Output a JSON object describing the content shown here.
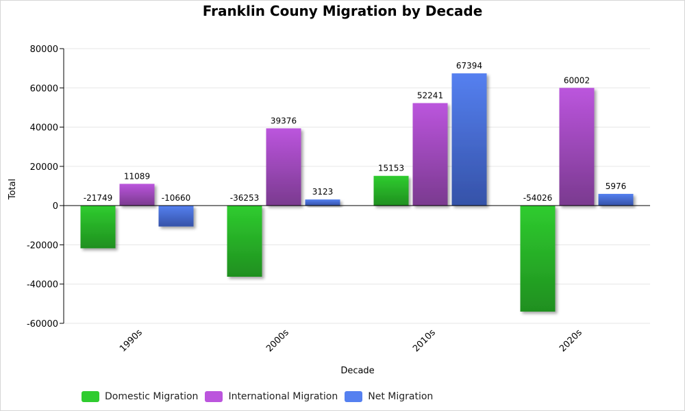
{
  "chart_data": {
    "type": "bar",
    "title": "Franklin Couny Migration by Decade",
    "xlabel": "Decade",
    "ylabel": "Total",
    "categories": [
      "1990s",
      "2000s",
      "2010s",
      "2020s"
    ],
    "series": [
      {
        "name": "Domestic Migration",
        "color": "#2fcc2f",
        "color_dark": "#1f8f1f",
        "values": [
          -21749,
          -36253,
          15153,
          -54026
        ]
      },
      {
        "name": "International Migration",
        "color": "#bb55dd",
        "color_dark": "#7a3a8f",
        "values": [
          11089,
          39376,
          52241,
          60002
        ]
      },
      {
        "name": "Net Migration",
        "color": "#5580f0",
        "color_dark": "#3552a8",
        "values": [
          -10660,
          3123,
          67394,
          5976
        ]
      }
    ],
    "ylim": [
      -60000,
      80000
    ],
    "yticks": [
      -60000,
      -40000,
      -20000,
      0,
      20000,
      40000,
      60000,
      80000
    ],
    "ytick_labels": [
      "-60000",
      "-40000",
      "-20000",
      "0",
      "20000",
      "40000",
      "60000",
      "80000"
    ],
    "grid": true,
    "legend_position": "bottom-left"
  }
}
